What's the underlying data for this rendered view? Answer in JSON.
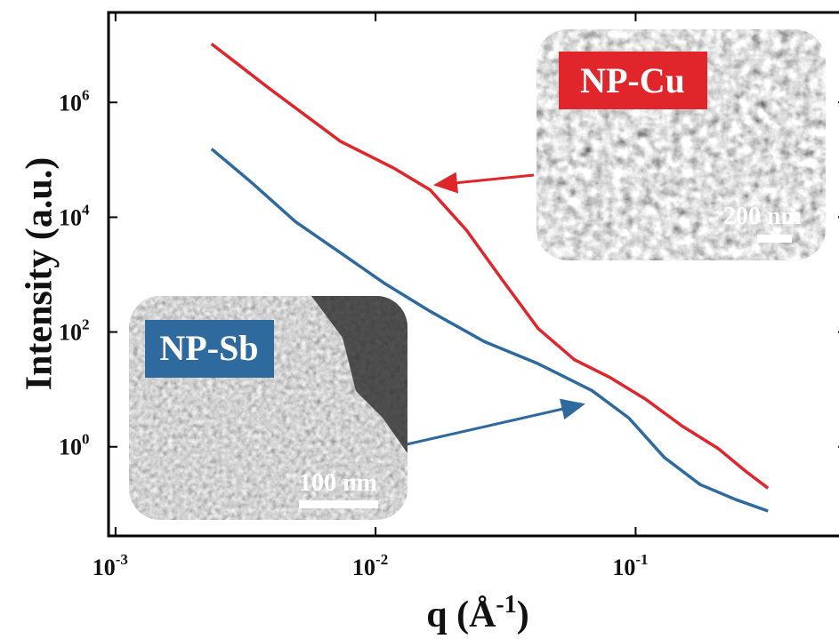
{
  "chart_data": {
    "type": "line",
    "xlabel": {
      "text": "q (Å",
      "sup": "-1",
      "end": ")"
    },
    "ylabel": "Intensity (a.u.)",
    "xscale": "log",
    "yscale": "log",
    "xlim": [
      0.00094,
      0.65
    ],
    "ylim": [
      0.028,
      37000000
    ],
    "xticks": [
      {
        "value": 0.001,
        "label": "10",
        "exponent": "-3"
      },
      {
        "value": 0.01,
        "label": "10",
        "exponent": "-2"
      },
      {
        "value": 0.1,
        "label": "10",
        "exponent": "-1"
      }
    ],
    "yticks": [
      {
        "value": 1,
        "label": "10",
        "exponent": "0"
      },
      {
        "value": 100,
        "label": "10",
        "exponent": "2"
      },
      {
        "value": 10000,
        "label": "10",
        "exponent": "4"
      },
      {
        "value": 1000000,
        "label": "10",
        "exponent": "6"
      }
    ],
    "series": [
      {
        "name": "NP-Cu",
        "color": "#e0252b",
        "x": [
          0.00234,
          0.00387,
          0.00733,
          0.0118,
          0.0162,
          0.0224,
          0.0307,
          0.0422,
          0.0581,
          0.08,
          0.11,
          0.151,
          0.208,
          0.264,
          0.323
        ],
        "values": [
          10500000,
          1800000,
          210000,
          71000,
          30000,
          5900,
          810,
          115,
          33,
          16,
          6.6,
          2.3,
          0.93,
          0.38,
          0.19
        ]
      },
      {
        "name": "NP-Sb",
        "color": "#2e6a9e",
        "x": [
          0.00234,
          0.0033,
          0.00493,
          0.00733,
          0.0109,
          0.0162,
          0.0262,
          0.0422,
          0.068,
          0.094,
          0.129,
          0.177,
          0.243,
          0.323
        ],
        "values": [
          155000,
          42000,
          8300,
          2400,
          690,
          230,
          68,
          28,
          9.5,
          3.2,
          0.65,
          0.22,
          0.12,
          0.076
        ]
      }
    ],
    "annotations": {
      "cu_scale": "200 nm",
      "sb_scale": "100 nm"
    }
  }
}
